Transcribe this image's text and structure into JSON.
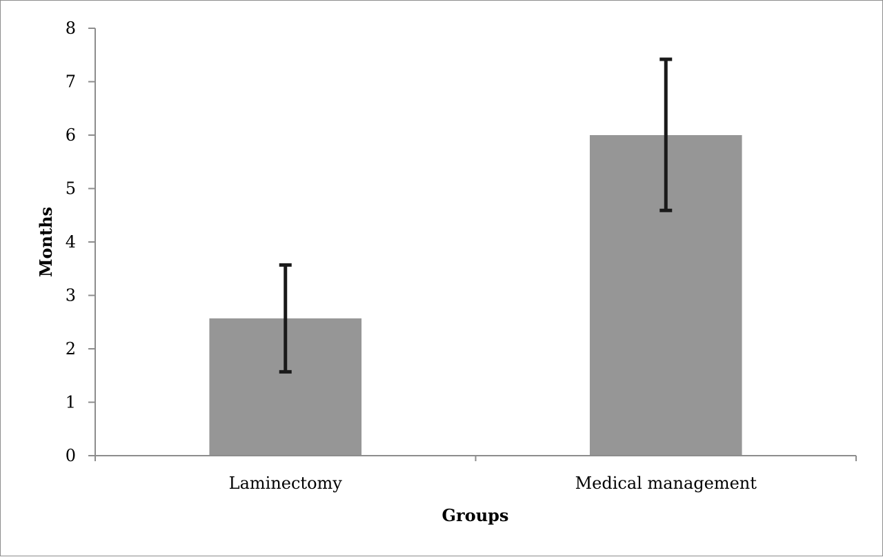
{
  "chart_data": {
    "type": "bar",
    "title": "",
    "xlabel": "Groups",
    "ylabel": "Months",
    "categories": [
      "Laminectomy",
      "Medical management"
    ],
    "values": [
      2.57,
      6.0
    ],
    "error_high": [
      3.57,
      7.42
    ],
    "error_low": [
      1.57,
      4.59
    ],
    "ylim": [
      0,
      8
    ],
    "yticks": [
      "0",
      "1",
      "2",
      "3",
      "4",
      "5",
      "6",
      "7",
      "8"
    ],
    "grid": false,
    "legend": "none",
    "bar_color": "#969696",
    "error_bar_color": "#1a1a1a",
    "axis_color": "#8c8c8c"
  }
}
